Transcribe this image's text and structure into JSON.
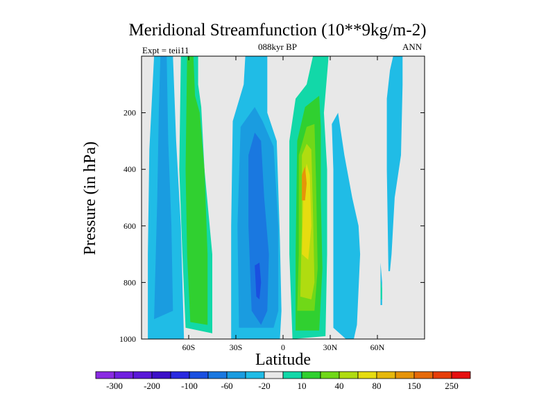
{
  "chart_data": {
    "type": "heatmap",
    "title": "Meridional Streamfunction (10**9kg/m-2)",
    "left_label": "Expt = teii11",
    "center_label": "088kyr BP",
    "right_label": "ANN",
    "xlabel": "Latitude",
    "ylabel": "Pressure (in hPa)",
    "xlim": [
      -90,
      90
    ],
    "ylim": [
      1000,
      0
    ],
    "x_ticks": [
      {
        "value": -60,
        "label": "60S"
      },
      {
        "value": -30,
        "label": "30S"
      },
      {
        "value": 0,
        "label": "0"
      },
      {
        "value": 30,
        "label": "30N"
      },
      {
        "value": 60,
        "label": "60N"
      }
    ],
    "y_ticks": [
      {
        "value": 200,
        "label": "200"
      },
      {
        "value": 400,
        "label": "400"
      },
      {
        "value": 600,
        "label": "600"
      },
      {
        "value": 800,
        "label": "800"
      },
      {
        "value": 1000,
        "label": "1000"
      }
    ],
    "background_color": "#e8e8e8",
    "colorbar": {
      "colors": [
        "#8a2be2",
        "#7020e0",
        "#5a18d8",
        "#3c10c8",
        "#2a2ae0",
        "#1a50e0",
        "#1a78e0",
        "#1a9ce0",
        "#20bce6",
        "#e8e8e8",
        "#12d8a8",
        "#30d030",
        "#70d818",
        "#b0dc10",
        "#e6dc10",
        "#e6b80c",
        "#e69408",
        "#e66a08",
        "#e63e08",
        "#e61010"
      ],
      "tick_labels": [
        "-300",
        "-200",
        "-100",
        "-60",
        "-20",
        "10",
        "40",
        "80",
        "150",
        "250"
      ]
    },
    "contour_regions": [
      {
        "level": "-20",
        "color": "#20bce6",
        "points": [
          [
            -86,
            1000
          ],
          [
            -86,
            700
          ],
          [
            -85,
            330
          ],
          [
            -82,
            0
          ],
          [
            -70,
            0
          ],
          [
            -68,
            300
          ],
          [
            -65,
            600
          ],
          [
            -63,
            1000
          ]
        ]
      },
      {
        "level": "-60",
        "color": "#1a9ce0",
        "points": [
          [
            -82,
            930
          ],
          [
            -80,
            500
          ],
          [
            -79,
            200
          ],
          [
            -78,
            0
          ],
          [
            -74,
            0
          ],
          [
            -73,
            300
          ],
          [
            -71,
            600
          ],
          [
            -70,
            900
          ]
        ]
      },
      {
        "level": "10",
        "color": "#12d8a8",
        "points": [
          [
            -62,
            960
          ],
          [
            -64,
            700
          ],
          [
            -66,
            400
          ],
          [
            -65,
            0
          ],
          [
            -54,
            0
          ],
          [
            -54,
            100
          ],
          [
            -52,
            180
          ],
          [
            -50,
            400
          ],
          [
            -45,
            700
          ],
          [
            -45,
            980
          ]
        ]
      },
      {
        "level": "40",
        "color": "#30d030",
        "points": [
          [
            -59,
            940
          ],
          [
            -61,
            700
          ],
          [
            -62,
            400
          ],
          [
            -61,
            0
          ],
          [
            -57,
            0
          ],
          [
            -56,
            140
          ],
          [
            -53,
            200
          ],
          [
            -50,
            400
          ],
          [
            -48,
            700
          ],
          [
            -48,
            950
          ]
        ]
      },
      {
        "level": "-20",
        "color": "#20bce6",
        "points": [
          [
            -33,
            1000
          ],
          [
            -33,
            600
          ],
          [
            -32,
            230
          ],
          [
            -25,
            100
          ],
          [
            -24,
            0
          ],
          [
            -10,
            0
          ],
          [
            -10,
            100
          ],
          [
            -10,
            200
          ],
          [
            -4,
            300
          ],
          [
            -2,
            650
          ],
          [
            -1,
            900
          ],
          [
            -2,
            1000
          ]
        ]
      },
      {
        "level": "-60",
        "color": "#1a9ce0",
        "points": [
          [
            -28,
            960
          ],
          [
            -29,
            600
          ],
          [
            -27,
            250
          ],
          [
            -18,
            180
          ],
          [
            -13,
            230
          ],
          [
            -6,
            320
          ],
          [
            -3,
            600
          ],
          [
            -3,
            900
          ],
          [
            -6,
            960
          ]
        ]
      },
      {
        "level": "-100",
        "color": "#1a78e0",
        "points": [
          [
            -20,
            900
          ],
          [
            -22,
            600
          ],
          [
            -22,
            350
          ],
          [
            -18,
            270
          ],
          [
            -14,
            300
          ],
          [
            -12,
            500
          ],
          [
            -9,
            700
          ],
          [
            -10,
            900
          ],
          [
            -14,
            950
          ]
        ]
      },
      {
        "level": "-200",
        "color": "#1a50e0",
        "points": [
          [
            -17,
            850
          ],
          [
            -18,
            740
          ],
          [
            -15,
            730
          ],
          [
            -14,
            800
          ],
          [
            -15,
            860
          ]
        ]
      },
      {
        "level": "10",
        "color": "#12d8a8",
        "points": [
          [
            6,
            1000
          ],
          [
            4,
            700
          ],
          [
            4,
            300
          ],
          [
            8,
            150
          ],
          [
            15,
            100
          ],
          [
            19,
            0
          ],
          [
            29,
            0
          ],
          [
            26,
            200
          ],
          [
            28,
            400
          ],
          [
            28,
            700
          ],
          [
            27,
            990
          ]
        ]
      },
      {
        "level": "40",
        "color": "#30d030",
        "points": [
          [
            8,
            970
          ],
          [
            8,
            700
          ],
          [
            9,
            300
          ],
          [
            14,
            180
          ],
          [
            23,
            140
          ],
          [
            24,
            250
          ],
          [
            24,
            500
          ],
          [
            25,
            750
          ],
          [
            23,
            970
          ]
        ]
      },
      {
        "level": "80",
        "color": "#70d818",
        "points": [
          [
            9,
            900
          ],
          [
            10,
            700
          ],
          [
            10,
            350
          ],
          [
            15,
            250
          ],
          [
            20,
            240
          ],
          [
            21,
            450
          ],
          [
            22,
            750
          ],
          [
            20,
            900
          ]
        ]
      },
      {
        "level": "150",
        "color": "#b0dc10",
        "points": [
          [
            11,
            850
          ],
          [
            12,
            600
          ],
          [
            12,
            350
          ],
          [
            15,
            310
          ],
          [
            18,
            330
          ],
          [
            19,
            550
          ],
          [
            20,
            800
          ],
          [
            18,
            860
          ]
        ]
      },
      {
        "level": "150",
        "color": "#e6dc10",
        "points": [
          [
            12,
            700
          ],
          [
            13,
            450
          ],
          [
            15,
            380
          ],
          [
            17,
            420
          ],
          [
            18,
            600
          ],
          [
            16,
            720
          ]
        ]
      },
      {
        "level": "250",
        "color": "#e69408",
        "points": [
          [
            12,
            510
          ],
          [
            12,
            420
          ],
          [
            14,
            390
          ],
          [
            15,
            450
          ],
          [
            14,
            510
          ]
        ]
      },
      {
        "level": "-20",
        "color": "#20bce6",
        "points": [
          [
            32,
            960
          ],
          [
            32,
            400
          ],
          [
            31,
            240
          ],
          [
            35,
            200
          ],
          [
            39,
            350
          ],
          [
            44,
            500
          ],
          [
            48,
            600
          ],
          [
            49,
            700
          ],
          [
            47,
            950
          ],
          [
            45,
            1000
          ],
          [
            40,
            1000
          ]
        ]
      },
      {
        "level": "-20",
        "color": "#20bce6",
        "points": [
          [
            67,
            760
          ],
          [
            66,
            400
          ],
          [
            66,
            150
          ],
          [
            68,
            50
          ],
          [
            70,
            0
          ],
          [
            76,
            0
          ],
          [
            76,
            100
          ],
          [
            75,
            350
          ],
          [
            71,
            500
          ],
          [
            69,
            700
          ],
          [
            68,
            760
          ]
        ]
      },
      {
        "level": "-20",
        "color": "#20bce6",
        "points": [
          [
            62,
            880
          ],
          [
            62,
            730
          ],
          [
            63,
            800
          ],
          [
            63,
            880
          ]
        ]
      },
      {
        "level": "10",
        "color": "#12d8a8",
        "points": [
          [
            62,
            860
          ],
          [
            62,
            790
          ],
          [
            63,
            820
          ],
          [
            63,
            860
          ]
        ]
      }
    ]
  }
}
